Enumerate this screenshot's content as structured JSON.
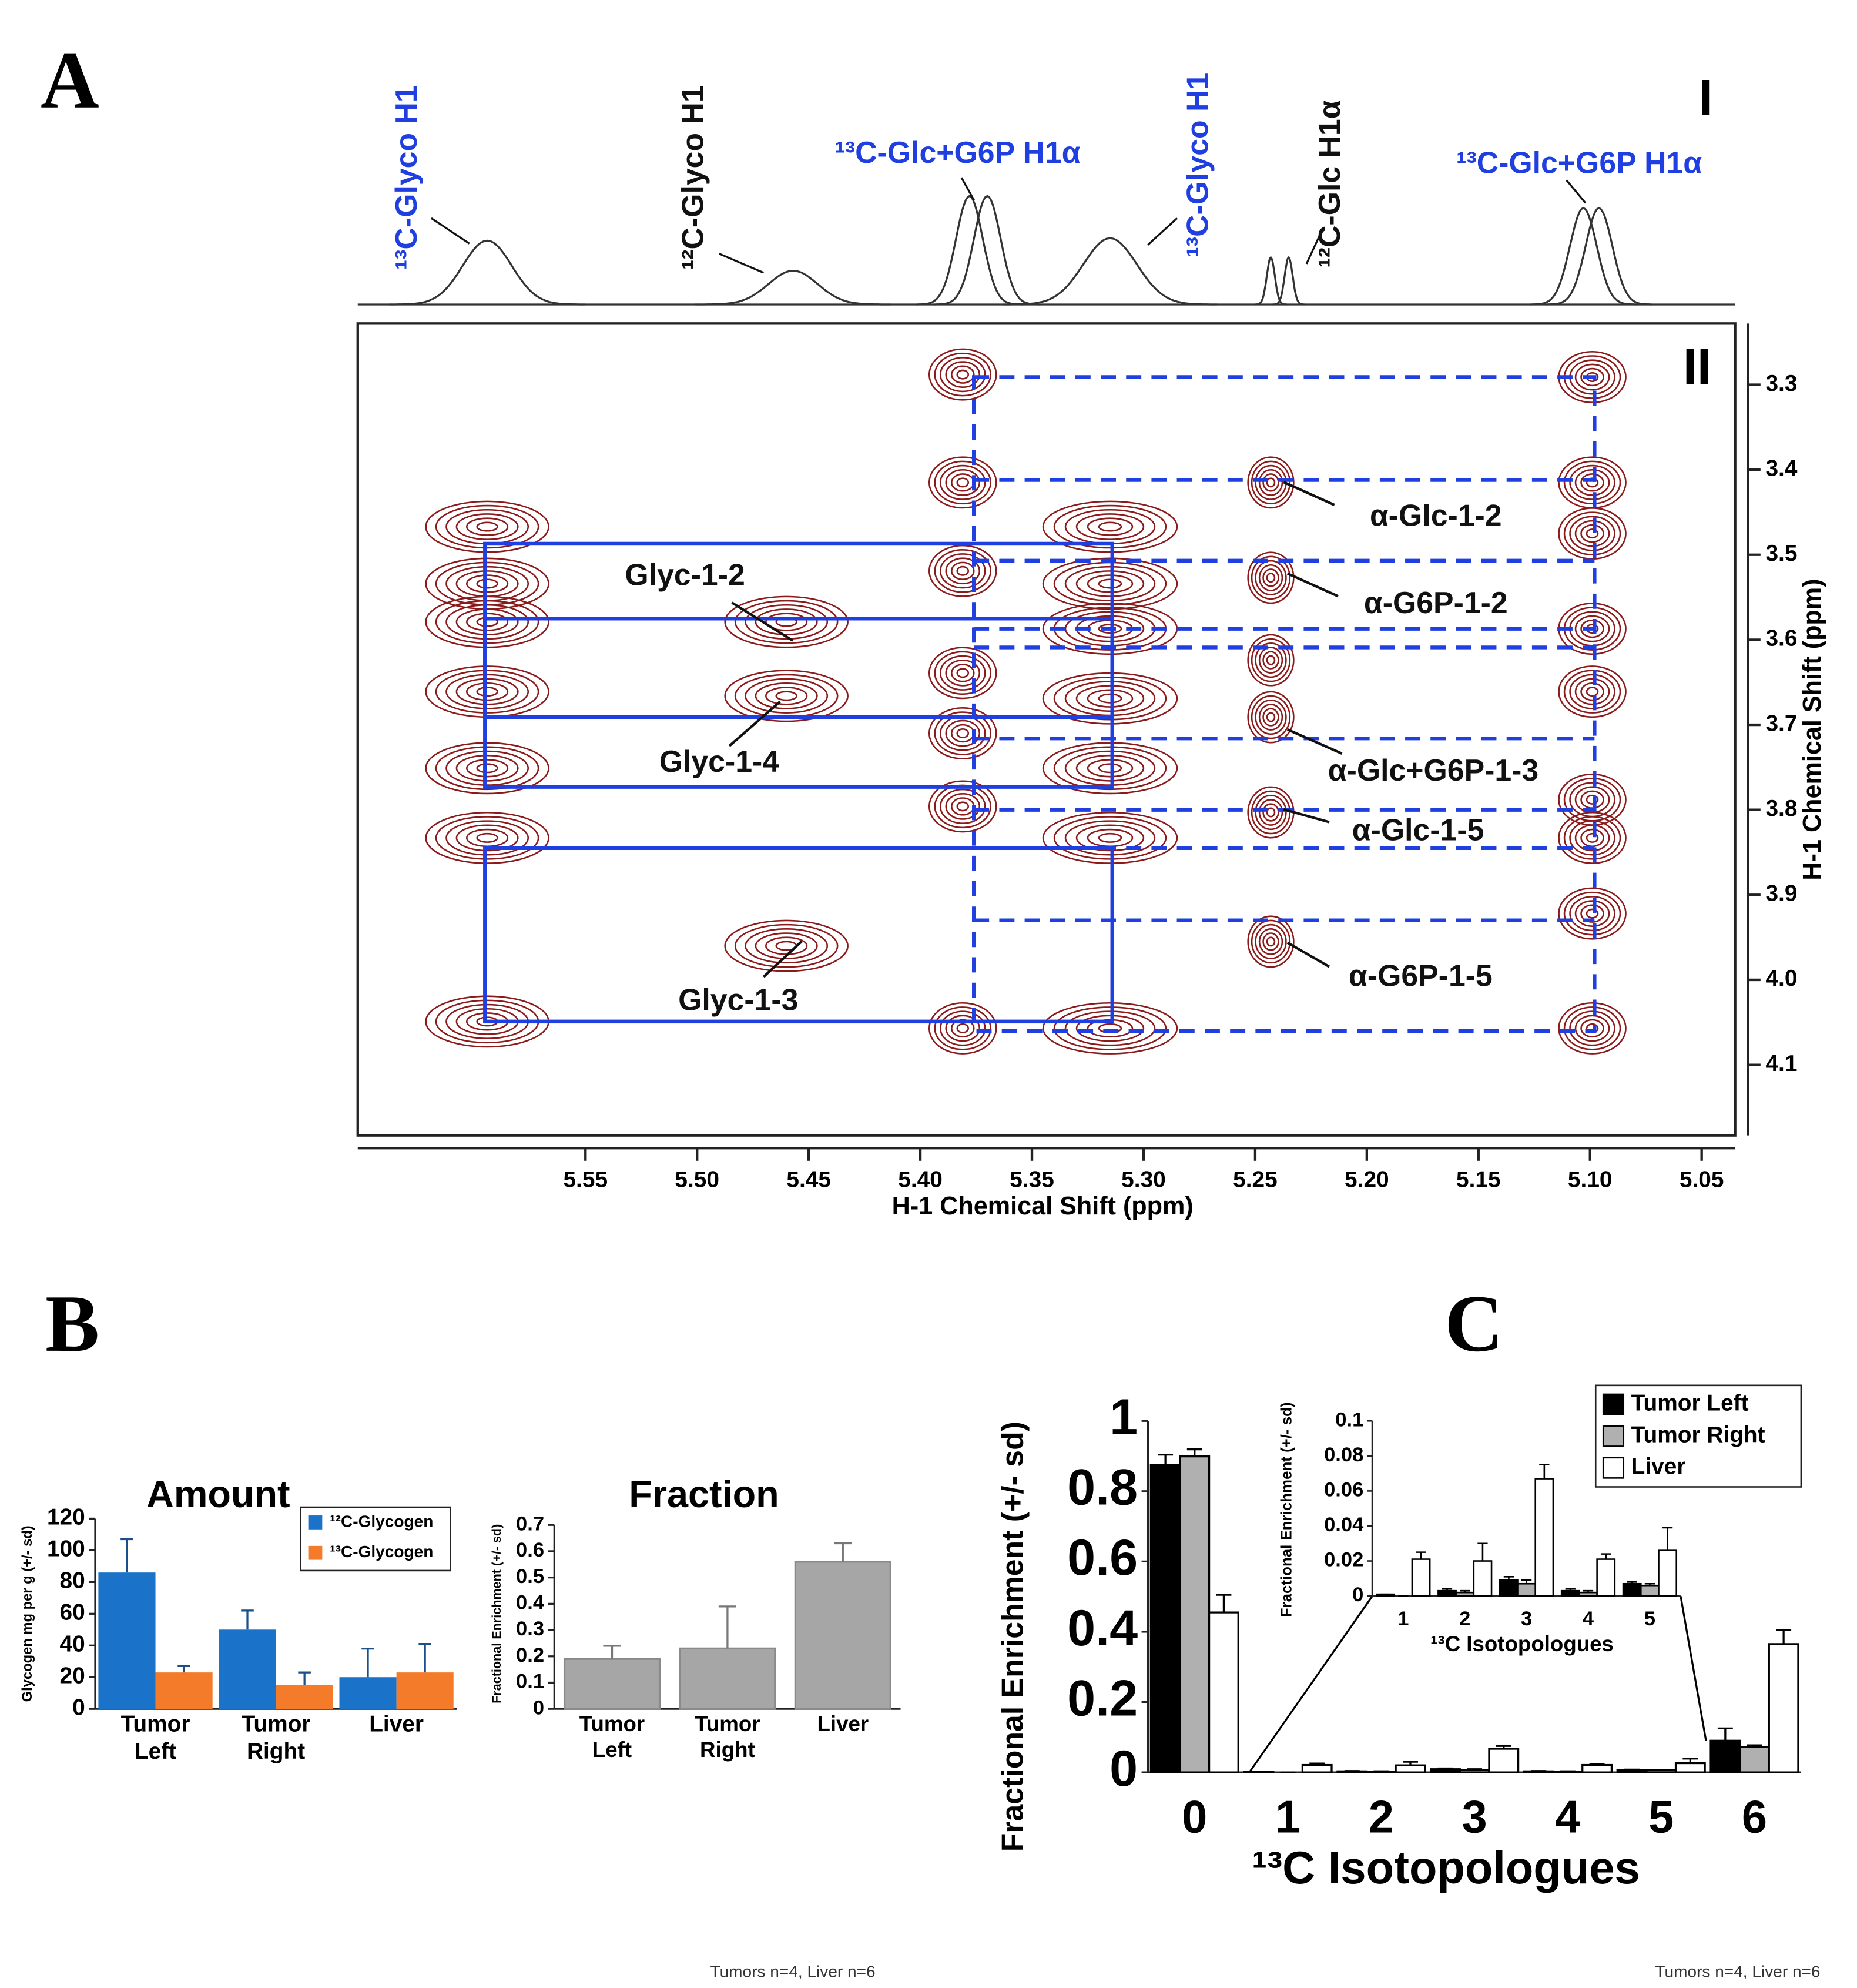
{
  "chart_data": [
    {
      "type": "nmr2d",
      "panel": "A",
      "spectrum_label": "I",
      "map_label": "II",
      "xlabel": "H-1 Chemical Shift (ppm)",
      "ylabel": "H-1 Chemical Shift (ppm)",
      "xlim": [
        5.652,
        5.035
      ],
      "ylim": [
        3.228,
        4.183
      ],
      "xticks": [
        5.55,
        {
          "value": 5.5,
          "label": "5.50"
        },
        5.45,
        {
          "value": 5.4,
          "label": "5.40"
        },
        5.35,
        {
          "value": 5.3,
          "label": "5.30"
        },
        5.25,
        {
          "value": 5.2,
          "label": "5.20"
        },
        5.15,
        {
          "value": 5.1,
          "label": "5.10"
        },
        5.05
      ],
      "yticks": [
        3.3,
        3.4,
        3.5,
        3.6,
        3.7,
        3.8,
        3.9,
        {
          "value": 4,
          "label": "4.0"
        },
        4.1
      ],
      "spectrum": {
        "color": "#333333",
        "x": [
          5.594,
          5.457,
          5.378,
          5.37,
          5.315,
          5.243,
          5.235,
          5.103,
          5.096
        ],
        "heights": [
          0.53,
          0.28,
          0.9,
          0.9,
          0.55,
          0.39,
          0.39,
          0.8,
          0.8
        ],
        "widths": [
          0.011,
          0.011,
          0.006,
          0.006,
          0.012,
          0.0018,
          0.0018,
          0.006,
          0.006
        ]
      },
      "spectrum_labels": [
        {
          "text": "¹³C-Glyco H1",
          "color": "#1f3fe0"
        },
        {
          "text": "¹²C-Glyco H1",
          "color": "#111111"
        },
        {
          "text": "¹³C-Glc+G6P H1α",
          "color": "#1f3fe0"
        },
        {
          "text": "¹³C-Glyco H1",
          "color": "#1f3fe0"
        },
        {
          "text": "¹²C-Glc H1α",
          "color": "#111111"
        },
        {
          "text": "¹³C-Glc+G6P H1α",
          "color": "#1f3fe0"
        }
      ],
      "peaks": {
        "color": "#8b1a1a",
        "x": [
          5.594,
          5.594,
          5.594,
          5.594,
          5.594,
          5.594,
          5.594,
          5.46,
          5.46,
          5.46,
          5.381,
          5.381,
          5.381,
          5.381,
          5.381,
          5.381,
          5.381,
          5.315,
          5.315,
          5.315,
          5.315,
          5.315,
          5.315,
          5.315,
          5.243,
          5.243,
          5.243,
          5.243,
          5.243,
          5.243,
          5.099,
          5.099,
          5.099,
          5.099,
          5.099,
          5.099,
          5.099,
          5.099,
          5.099
        ],
        "y": [
          3.467,
          3.534,
          3.579,
          3.661,
          3.751,
          3.833,
          4.049,
          3.579,
          3.666,
          3.96,
          3.288,
          3.415,
          3.519,
          3.639,
          3.71,
          3.796,
          4.057,
          3.467,
          3.534,
          3.587,
          3.669,
          3.751,
          3.833,
          4.057,
          3.415,
          3.527,
          3.624,
          3.691,
          3.803,
          3.955,
          3.291,
          3.415,
          3.475,
          3.587,
          3.661,
          3.788,
          3.833,
          3.922,
          4.057
        ]
      },
      "box_color": "#1f3fe0",
      "solid_boxes": [
        {
          "x": [
            5.595,
            5.314
          ],
          "y": [
            3.487,
            3.773
          ]
        },
        {
          "x": [
            5.595,
            5.314
          ],
          "y": [
            3.575,
            3.691
          ]
        },
        {
          "x": [
            5.595,
            5.314
          ],
          "y": [
            3.845,
            4.049
          ]
        }
      ],
      "dashed_box": {
        "x": [
          5.376,
          5.098
        ],
        "y": [
          3.291,
          4.06
        ]
      },
      "dashed_lines": [
        3.412,
        3.507,
        3.587,
        3.609,
        3.716,
        3.8,
        3.845,
        3.93
      ],
      "annotations": [
        "Glyc-1-2",
        "Glyc-1-4",
        "Glyc-1-3",
        "α-Glc-1-2",
        "α-G6P-1-2",
        "α-Glc+G6P-1-3",
        "α-Glc-1-5",
        "α-G6P-1-5"
      ]
    },
    {
      "type": "bar",
      "panel": "B",
      "title": "Amount",
      "ylabel": "Glycogen mg per g (+/- sd)",
      "categories": [
        [
          "Tumor",
          "Left"
        ],
        [
          "Tumor",
          "Right"
        ],
        [
          "Liver"
        ]
      ],
      "ylim": [
        0,
        120
      ],
      "yticks": [
        0,
        20,
        40,
        60,
        80,
        100,
        120
      ],
      "legend": "upper right",
      "series": [
        {
          "name": "¹²C-Glycogen",
          "color": "#1a73c9",
          "values": [
            86,
            50,
            20
          ],
          "errors": [
            21,
            12,
            18
          ]
        },
        {
          "name": "¹³C-Glycogen",
          "color": "#f47b2a",
          "values": [
            23,
            15,
            23
          ],
          "errors": [
            4,
            8,
            18
          ]
        }
      ]
    },
    {
      "type": "bar",
      "title": "Fraction",
      "ylabel": "Fractional Enrichment (+/- sd)",
      "categories": [
        [
          "Tumor",
          "Left"
        ],
        [
          "Tumor",
          "Right"
        ],
        [
          "Liver"
        ]
      ],
      "ylim": [
        0,
        0.7
      ],
      "yticks": [
        0,
        0.1,
        0.2,
        0.3,
        0.4,
        0.5,
        0.6,
        0.7
      ],
      "series": [
        {
          "color": "#a6a6a6",
          "values": [
            0.19,
            0.23,
            0.56
          ],
          "errors": [
            0.05,
            0.16,
            0.07
          ]
        }
      ],
      "note": "Tumors n=4, Liver n=6"
    },
    {
      "type": "bar",
      "panel": "C",
      "ylabel": "Fractional Enrichment (+/- sd)",
      "xlabel": "¹³C Isotopologues",
      "categories": [
        "0",
        "1",
        "2",
        "3",
        "4",
        "5",
        "6"
      ],
      "ylim": [
        0,
        1
      ],
      "yticks": [
        0,
        0.2,
        0.4,
        0.6,
        0.8,
        1
      ],
      "legend": "upper right",
      "series": [
        {
          "name": "Tumor Left",
          "color": "#000000",
          "values": [
            0.874,
            0.001,
            0.003,
            0.009,
            0.003,
            0.007,
            0.09
          ],
          "errors": [
            0.03,
            0,
            0.001,
            0.002,
            0.001,
            0.001,
            0.035
          ]
        },
        {
          "name": "Tumor Right",
          "color": "#b0b0b0",
          "values": [
            0.899,
            0,
            0.002,
            0.007,
            0.002,
            0.006,
            0.072
          ],
          "errors": [
            0.02,
            0,
            0.001,
            0.002,
            0.001,
            0.001,
            0.005
          ]
        },
        {
          "name": "Liver",
          "color": "#ffffff",
          "values": [
            0.455,
            0.021,
            0.02,
            0.067,
            0.021,
            0.026,
            0.365
          ],
          "errors": [
            0.05,
            0.004,
            0.01,
            0.008,
            0.003,
            0.013,
            0.04
          ]
        }
      ],
      "inset": {
        "ylabel": "Fractional Enrichment (+/- sd)",
        "xlabel": "¹³C Isotopologues",
        "ylim": [
          0,
          0.1
        ],
        "yticks": [
          0,
          0.02,
          0.04,
          0.06,
          0.08,
          0.1
        ]
      },
      "note": "Tumors n=4, Liver n=6"
    }
  ]
}
